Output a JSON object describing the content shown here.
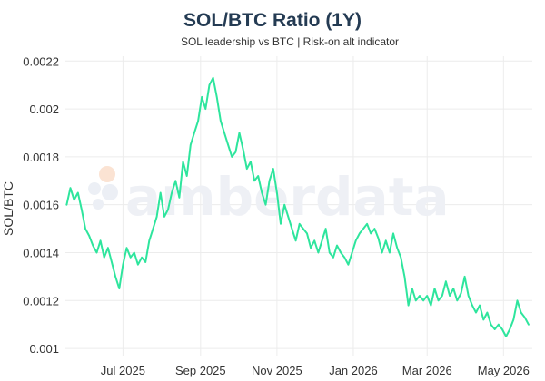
{
  "chart_data": {
    "type": "line",
    "title": "SOL/BTC Ratio (1Y)",
    "subtitle": "SOL leadership vs BTC | Risk-on alt indicator",
    "xlabel": "",
    "ylabel": "SOL/BTC",
    "ylim": [
      0.00097,
      0.00222
    ],
    "xlim": [
      "2025-05-16",
      "2026-05-24"
    ],
    "grid": true,
    "legend": "none",
    "y_ticks": [
      0.001,
      0.0012,
      0.0014,
      0.0016,
      0.0018,
      0.002,
      0.0022
    ],
    "y_tick_labels": [
      "0.001",
      "0.0012",
      "0.0014",
      "0.0016",
      "0.0018",
      "0.002",
      "0.0022"
    ],
    "x_ticks": [
      "2025-07-01",
      "2025-09-01",
      "2025-11-01",
      "2026-01-01",
      "2026-03-01",
      "2026-05-01"
    ],
    "x_tick_labels": [
      "Jul 2025",
      "Sep 2025",
      "Nov 2025",
      "Jan 2026",
      "Mar 2026",
      "May 2026"
    ],
    "series": [
      {
        "color": "#2ee59d",
        "x": [
          "2025-05-17",
          "2025-05-20",
          "2025-05-23",
          "2025-05-26",
          "2025-05-29",
          "2025-06-01",
          "2025-06-04",
          "2025-06-07",
          "2025-06-10",
          "2025-06-13",
          "2025-06-16",
          "2025-06-19",
          "2025-06-22",
          "2025-06-25",
          "2025-06-28",
          "2025-07-01",
          "2025-07-04",
          "2025-07-07",
          "2025-07-10",
          "2025-07-13",
          "2025-07-16",
          "2025-07-19",
          "2025-07-22",
          "2025-07-25",
          "2025-07-28",
          "2025-07-31",
          "2025-08-03",
          "2025-08-06",
          "2025-08-09",
          "2025-08-12",
          "2025-08-15",
          "2025-08-18",
          "2025-08-21",
          "2025-08-24",
          "2025-08-27",
          "2025-08-30",
          "2025-09-02",
          "2025-09-05",
          "2025-09-08",
          "2025-09-11",
          "2025-09-14",
          "2025-09-17",
          "2025-09-20",
          "2025-09-23",
          "2025-09-26",
          "2025-09-29",
          "2025-10-02",
          "2025-10-05",
          "2025-10-08",
          "2025-10-11",
          "2025-10-14",
          "2025-10-17",
          "2025-10-20",
          "2025-10-23",
          "2025-10-26",
          "2025-10-29",
          "2025-11-01",
          "2025-11-04",
          "2025-11-07",
          "2025-11-10",
          "2025-11-13",
          "2025-11-16",
          "2025-11-19",
          "2025-11-22",
          "2025-11-25",
          "2025-11-28",
          "2025-12-01",
          "2025-12-04",
          "2025-12-07",
          "2025-12-10",
          "2025-12-13",
          "2025-12-16",
          "2025-12-19",
          "2025-12-22",
          "2025-12-25",
          "2025-12-28",
          "2025-12-31",
          "2026-01-03",
          "2026-01-06",
          "2026-01-09",
          "2026-01-12",
          "2026-01-15",
          "2026-01-18",
          "2026-01-21",
          "2026-01-24",
          "2026-01-27",
          "2026-01-30",
          "2026-02-02",
          "2026-02-05",
          "2026-02-08",
          "2026-02-11",
          "2026-02-14",
          "2026-02-17",
          "2026-02-20",
          "2026-02-23",
          "2026-02-26",
          "2026-03-01",
          "2026-03-04",
          "2026-03-07",
          "2026-03-10",
          "2026-03-13",
          "2026-03-16",
          "2026-03-19",
          "2026-03-22",
          "2026-03-25",
          "2026-03-28",
          "2026-03-31",
          "2026-04-03",
          "2026-04-06",
          "2026-04-09",
          "2026-04-12",
          "2026-04-15",
          "2026-04-18",
          "2026-04-21",
          "2026-04-24",
          "2026-04-27",
          "2026-04-30",
          "2026-05-03",
          "2026-05-06",
          "2026-05-09",
          "2026-05-12",
          "2026-05-15",
          "2026-05-18",
          "2026-05-21"
        ],
        "values": [
          0.0016,
          0.00167,
          0.00162,
          0.00165,
          0.00158,
          0.0015,
          0.00147,
          0.00143,
          0.0014,
          0.00145,
          0.00138,
          0.00142,
          0.00136,
          0.0013,
          0.00125,
          0.00135,
          0.00142,
          0.00138,
          0.0014,
          0.00135,
          0.00138,
          0.00136,
          0.00145,
          0.0015,
          0.00155,
          0.00165,
          0.00155,
          0.00158,
          0.00165,
          0.0017,
          0.00163,
          0.00178,
          0.00172,
          0.00185,
          0.0019,
          0.00195,
          0.00205,
          0.002,
          0.0021,
          0.00213,
          0.00205,
          0.00195,
          0.0019,
          0.00185,
          0.0018,
          0.00182,
          0.0019,
          0.00183,
          0.00175,
          0.00178,
          0.0017,
          0.00172,
          0.00165,
          0.0016,
          0.0017,
          0.00175,
          0.00165,
          0.00152,
          0.0016,
          0.00155,
          0.0015,
          0.00145,
          0.00152,
          0.0015,
          0.00148,
          0.00142,
          0.00145,
          0.0014,
          0.00145,
          0.0015,
          0.0014,
          0.00138,
          0.00143,
          0.0014,
          0.00138,
          0.00135,
          0.0014,
          0.00145,
          0.00148,
          0.0015,
          0.00152,
          0.00148,
          0.0015,
          0.00146,
          0.0014,
          0.00145,
          0.0014,
          0.00148,
          0.00142,
          0.00138,
          0.0013,
          0.00118,
          0.00125,
          0.0012,
          0.00122,
          0.0012,
          0.00122,
          0.00118,
          0.00125,
          0.0012,
          0.00122,
          0.00128,
          0.00122,
          0.00125,
          0.0012,
          0.00123,
          0.0013,
          0.00122,
          0.00118,
          0.00115,
          0.00118,
          0.00112,
          0.00115,
          0.0011,
          0.00108,
          0.0011,
          0.00108,
          0.00105,
          0.00108,
          0.00112,
          0.0012,
          0.00115,
          0.00113,
          0.0011
        ]
      }
    ]
  },
  "watermark": {
    "text": "amberdata"
  }
}
